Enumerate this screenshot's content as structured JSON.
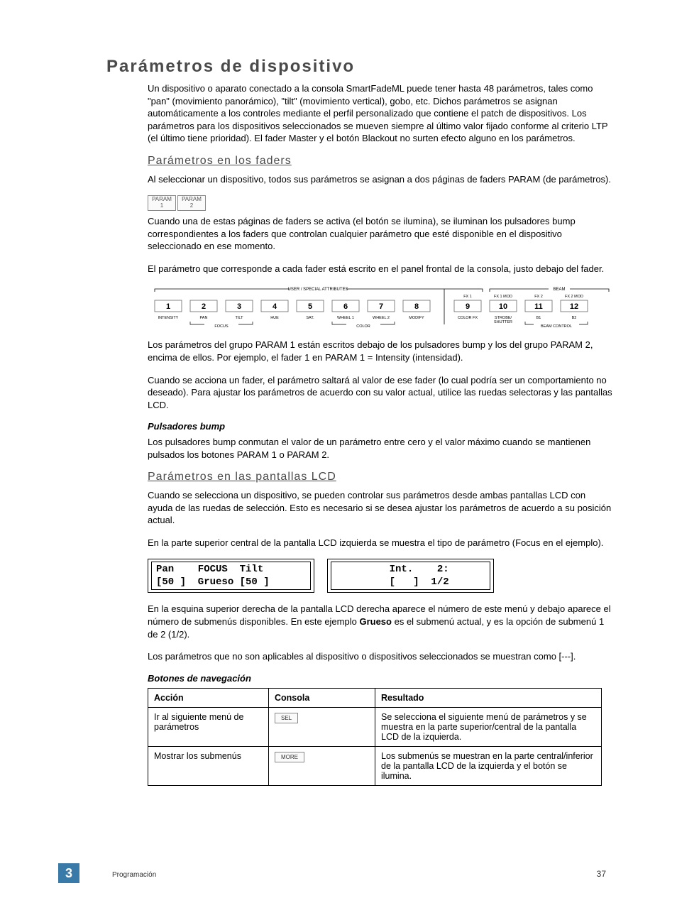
{
  "title": "Parámetros de dispositivo",
  "intro": "Un dispositivo o aparato conectado a la consola SmartFadeML puede tener hasta 48 parámetros, tales como \"pan\" (movimiento panorámico), \"tilt\" (movimiento vertical), gobo, etc. Dichos parámetros se asignan automáticamente a los controles mediante el perfil personalizado que contiene el patch de dispositivos. Los parámetros para los dispositivos seleccionados se mueven siempre al último valor fijado conforme al criterio LTP (el último tiene prioridad). El fader Master y el botón Blackout no surten efecto alguno en los parámetros.",
  "section1": {
    "title": "Parámetros en los faders",
    "p1": "Al seleccionar un dispositivo, todos sus parámetros se asignan a dos páginas de faders PARAM (de parámetros).",
    "btn1_line1": "PARAM",
    "btn1_line2": "1",
    "btn2_line1": "PARAM",
    "btn2_line2": "2",
    "p2": "Cuando una de estas páginas de faders se activa (el botón se ilumina), se iluminan los pulsadores bump correspondientes a los faders que controlan cualquier parámetro que esté disponible en el dispositivo seleccionado en ese momento.",
    "p3": "El parámetro que corresponde a cada fader está escrito en el panel frontal de la consola, justo debajo del fader.",
    "p4": "Los parámetros del grupo PARAM 1 están escritos debajo de los pulsadores bump y los del grupo PARAM 2, encima de ellos. Por ejemplo, el fader 1 en PARAM 1 = Intensity (intensidad).",
    "p5": "Cuando se acciona un fader, el parámetro saltará al valor de ese fader (lo cual podría ser un comportamiento no deseado). Para ajustar los parámetros de acuerdo con su valor actual, utilice las ruedas selectoras y las pantallas LCD."
  },
  "fader_panel": {
    "group1_label": "USER / SPECIAL ATTRIBUTES",
    "group2_label": "BEAM",
    "focus_label": "FOCUS",
    "color_label": "COLOR",
    "beam_control_label": "BEAM CONTROL",
    "numbers": [
      "1",
      "2",
      "3",
      "4",
      "5",
      "6",
      "7",
      "8",
      "9",
      "10",
      "11",
      "12"
    ],
    "top_labels": [
      "",
      "",
      "",
      "",
      "",
      "",
      "",
      "",
      "FX 1",
      "FX 1 MOD",
      "FX 2",
      "FX 2 MOD"
    ],
    "bottom_labels": [
      "INTENSITY",
      "PAN",
      "TILT",
      "HUE",
      "SAT.",
      "WHEEL 1",
      "WHEEL 2",
      "MODIFY",
      "COLOR FX",
      "STROBE/\nSHUTTER",
      "B1",
      "B2"
    ]
  },
  "bump": {
    "title": "Pulsadores bump",
    "p": "Los pulsadores bump conmutan el valor de un parámetro entre cero y el valor máximo cuando se mantienen pulsados los botones PARAM 1 o PARAM 2."
  },
  "section2": {
    "title": "Parámetros en las pantallas LCD",
    "p1": "Cuando se selecciona un dispositivo, se pueden controlar sus parámetros desde ambas pantallas LCD con ayuda de las ruedas de selección. Esto es necesario si se desea ajustar los parámetros de acuerdo a su posición actual.",
    "p2": "En la parte superior central de la pantalla LCD izquierda se muestra el tipo de parámetro (Focus en el ejemplo).",
    "lcd_left": "Pan    FOCUS  Tilt\n[50 ]  Grueso [50 ]",
    "lcd_right": "         Int.    2:\n         [   ]  1/2",
    "p3a": "En la esquina superior derecha de la pantalla LCD derecha aparece el número de este menú y debajo aparece el número de submenús disponibles. En este ejemplo ",
    "p3b": "Grueso",
    "p3c": " es el submenú actual, y es la opción de submenú 1 de 2 (1/2).",
    "p4": "Los parámetros que no son aplicables al dispositivo o dispositivos seleccionados se muestran como [---]."
  },
  "nav": {
    "title": "Botones de navegación",
    "headers": [
      "Acción",
      "Consola",
      "Resultado"
    ],
    "rows": [
      {
        "accion": "Ir al siguiente menú de parámetros",
        "btn": "SEL",
        "resultado": "Se selecciona el siguiente menú de parámetros y se muestra en la parte superior/central de la pantalla LCD de la izquierda."
      },
      {
        "accion": "Mostrar los submenús",
        "btn": "MORE",
        "resultado": "Los submenús se muestran en la parte central/inferior de la pantalla LCD de la izquierda y el botón se ilumina."
      }
    ]
  },
  "footer": {
    "chapter": "3",
    "section": "Programación",
    "page": "37"
  }
}
